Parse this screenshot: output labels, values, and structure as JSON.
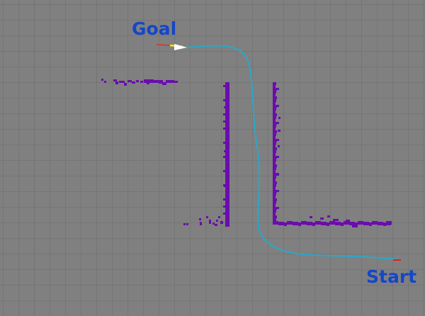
{
  "labels": {
    "goal": "Goal",
    "start": "Start"
  },
  "colors": {
    "background": "#808080",
    "grid": "#6e6e6e",
    "obstacle": "#6a0dad",
    "path": "#29a8c9",
    "label": "#1446c8",
    "goal_arrow": "#ffffff",
    "goal_marker": "#ffe600",
    "start_marker": "#e02020"
  },
  "icons": {
    "goal_pose": "goal-pose-arrow-icon",
    "start_pose": "start-pose-marker-icon"
  }
}
